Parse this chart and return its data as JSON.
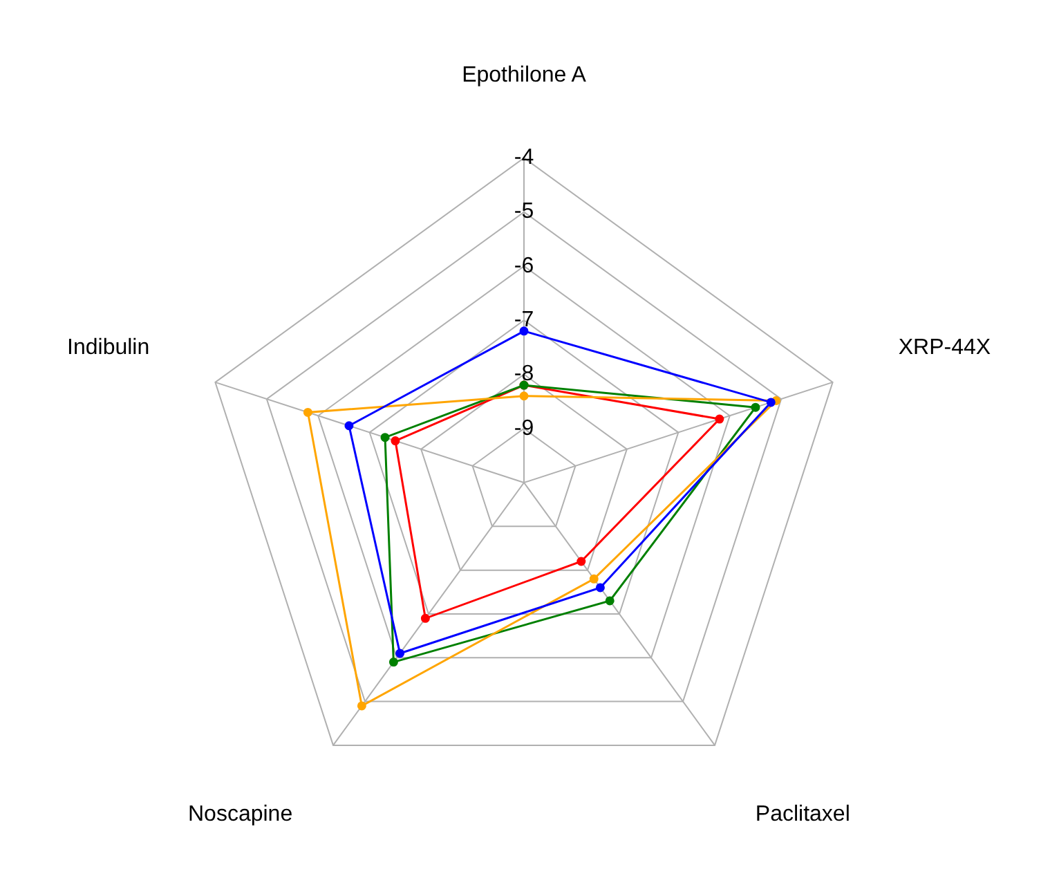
{
  "chart_data": {
    "type": "radar",
    "categories": [
      "Epothilone A",
      "XRP-44X",
      "Paclitaxel",
      "Noscapine",
      "Indibulin"
    ],
    "series": [
      {
        "color": "#0000ff",
        "values": [
          -7.2,
          -5.2,
          -7.6,
          -6.1,
          -6.6
        ]
      },
      {
        "color": "#ffa500",
        "values": [
          -8.4,
          -5.1,
          -7.8,
          -4.9,
          -5.8
        ]
      },
      {
        "color": "#008000",
        "values": [
          -8.2,
          -5.5,
          -7.3,
          -5.9,
          -7.3
        ]
      },
      {
        "color": "#ff0000",
        "values": [
          -8.2,
          -6.2,
          -8.2,
          -6.9,
          -7.5
        ]
      }
    ],
    "ylim": [
      -10,
      -4
    ],
    "yticks": [
      -9,
      -8,
      -7,
      -6,
      -5,
      -4
    ],
    "marker": "circle",
    "line_style": "solid",
    "grid": true,
    "legend": false
  }
}
